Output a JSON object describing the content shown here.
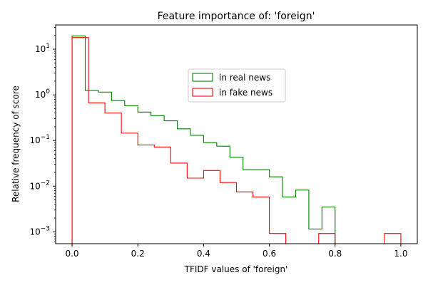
{
  "chart_data": {
    "type": "histogram-step",
    "title": "Feature importance of: 'foreign'",
    "xlabel": "TFIDF values of 'foreign'",
    "ylabel": "Relative frequency of score",
    "xlim": [
      -0.05,
      1.05
    ],
    "ylim": [
      0.00055,
      34
    ],
    "yscale": "log",
    "xticks": [
      0.0,
      0.2,
      0.4,
      0.6,
      0.8,
      1.0
    ],
    "xtick_labels": [
      "0.0",
      "0.2",
      "0.4",
      "0.6",
      "0.8",
      "1.0"
    ],
    "yticks": [
      10,
      1,
      0.1,
      0.01,
      0.001
    ],
    "ytick_labels": [
      {
        "base": "10",
        "exp": "1"
      },
      {
        "base": "10",
        "exp": "0"
      },
      {
        "base": "10",
        "exp": "−1"
      },
      {
        "base": "10",
        "exp": "−2"
      },
      {
        "base": "10",
        "exp": "−3"
      }
    ],
    "legend_position": "upper-center",
    "series": [
      {
        "name": "in real news",
        "color": "#008000",
        "bin_edges": [
          0.0,
          0.04,
          0.08,
          0.12,
          0.16,
          0.2,
          0.24,
          0.28,
          0.32,
          0.36,
          0.4,
          0.44,
          0.48,
          0.52,
          0.56,
          0.6,
          0.64,
          0.68,
          0.72,
          0.76,
          0.8
        ],
        "values": [
          19.5,
          1.25,
          1.15,
          0.75,
          0.58,
          0.42,
          0.35,
          0.27,
          0.18,
          0.13,
          0.09,
          0.075,
          0.043,
          0.023,
          0.023,
          0.016,
          0.0058,
          0.0082,
          0.00115,
          0.0035
        ]
      },
      {
        "name": "in fake news",
        "color": "#ff0000",
        "bin_edges": [
          0.0,
          0.05,
          0.1,
          0.15,
          0.2,
          0.25,
          0.3,
          0.35,
          0.4,
          0.45,
          0.5,
          0.55,
          0.6,
          0.65,
          0.7,
          0.75,
          0.8,
          0.85,
          0.9,
          0.95,
          1.0
        ],
        "values": [
          18.0,
          0.67,
          0.4,
          0.145,
          0.08,
          0.072,
          0.032,
          0.015,
          0.022,
          0.012,
          0.0075,
          0.0058,
          0.00092,
          0.0,
          0.0,
          0.00092,
          0.0,
          0.0,
          0.0,
          0.00092
        ]
      }
    ]
  }
}
